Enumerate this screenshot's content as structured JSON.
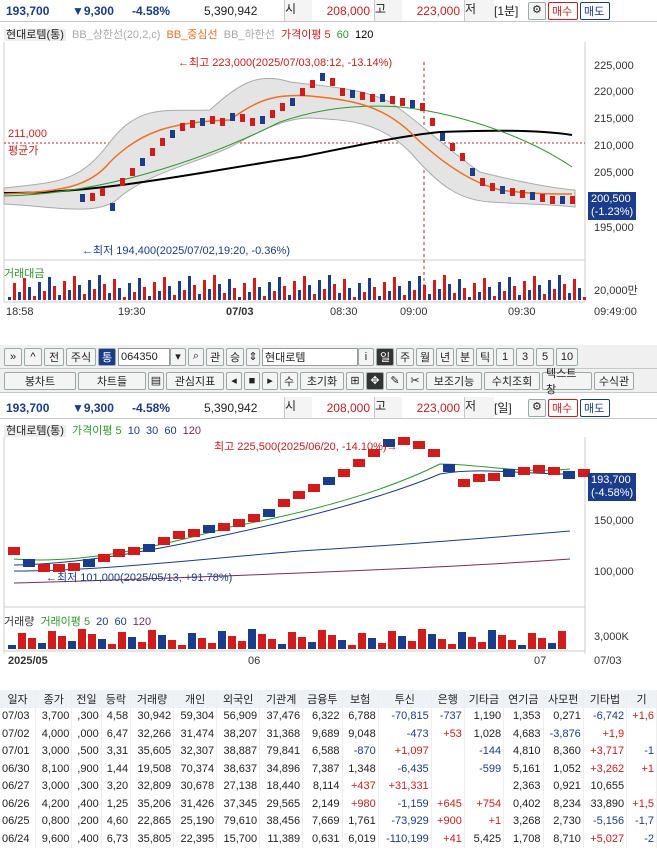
{
  "top_bar": {
    "price": "193,700",
    "change": "▼9,300",
    "rate": "-4.58%",
    "volume": "5,390,942",
    "low_label": "시",
    "open": "208,000",
    "high_label": "고",
    "high": "223,000",
    "low_word": "저",
    "interval": "[1분]",
    "buy": "매수",
    "sell": "매도"
  },
  "chart1": {
    "legend": {
      "name": "현대로템(통)",
      "bb_upper": "BB_상한선(20,2,c)",
      "bb_mid": "BB_중심선",
      "bb_lower": "BB_하한선",
      "ma_label": "가격이평 5",
      "ma60": "60",
      "ma120": "120"
    },
    "annotation_high": "←최고 223,000(2025/07/03,08:12, -13.14%)",
    "annotation_low": "←최저 194,400(2025/07/02,19:20, -0.36%)",
    "avg_label_value": "211,000",
    "avg_label_text": "평균가",
    "y_ticks": [
      "225,000",
      "220,000",
      "215,000",
      "210,000",
      "205,000",
      "195,000"
    ],
    "current_price": "200,500",
    "current_rate": "(-1.23%)",
    "volume_label": "거래대금",
    "volume_tick": "20,000만",
    "x_ticks": [
      "18:58",
      "19:30",
      "07/03",
      "08:30",
      "09:00",
      "09:30",
      "09:49:00"
    ]
  },
  "toolbar": {
    "items": [
      "전",
      "주식"
    ],
    "code": "064350",
    "name": "현대로템",
    "periods": [
      "일",
      "주",
      "월",
      "년",
      "분",
      "틱"
    ],
    "nums": [
      "1",
      "3",
      "5",
      "10"
    ],
    "row2": [
      "봉차트",
      "차트들",
      "관심지표",
      "수",
      "초기화",
      "보조기능",
      "수치조회",
      "텍스트 창",
      "수식관"
    ]
  },
  "chart2_bar": {
    "price": "193,700",
    "change": "▼9,300",
    "rate": "-4.58%",
    "volume": "5,390,942",
    "low_label": "시",
    "open": "208,000",
    "high_label": "고",
    "high": "223,000",
    "low_word": "저",
    "interval": "[일]",
    "buy": "매수",
    "sell": "매도"
  },
  "chart2": {
    "legend": {
      "name": "현대로템(통)",
      "ma_label": "가격이평 5",
      "ma10": "10",
      "ma30": "30",
      "ma60": "60",
      "ma120": "120"
    },
    "annotation_high": "최고 225,500(2025/06/20, -14.10%)→",
    "annotation_low": "←최저 101,000(2025/05/13, +91.78%)",
    "y_ticks": [
      "150,000",
      "100,000"
    ],
    "current_price": "193,700",
    "current_rate": "(-4.58%)",
    "volume_legend": "거래량",
    "volume_ma": "거래이평 5",
    "vma20": "20",
    "vma60": "60",
    "vma120": "120",
    "volume_tick": "3,000K",
    "x_ticks": [
      "2025/05",
      "06",
      "07",
      "07/03"
    ]
  },
  "table": {
    "headers": [
      "일자",
      "종가",
      "전일",
      "등락",
      "거래량",
      "개인",
      "외국인",
      "기관계",
      "금융투",
      "보험",
      "투신",
      "은행",
      "기타금",
      "연기금",
      "사모펀",
      "기타법",
      "기"
    ],
    "rows": [
      [
        "07/03",
        "3,700",
        ",300",
        "4,58",
        "30,942",
        "59,304",
        "56,909",
        "37,476",
        "6,322",
        "6,788",
        "-70,815",
        "-737",
        "1,190",
        "1,353",
        "0,271",
        "-6,742",
        "+1,6"
      ],
      [
        "07/02",
        "4,000",
        ",000",
        "6,47",
        "32,266",
        "31,474",
        "38,207",
        "31,368",
        "9,689",
        "9,048",
        "-473",
        "+53",
        "1,028",
        "4,683",
        "-3,876",
        "+1,9",
        ""
      ],
      [
        "07/01",
        "3,000",
        ",500",
        "3,31",
        "35,605",
        "32,307",
        "38,887",
        "79,841",
        "6,588",
        "-870",
        "+1,097",
        "",
        "-144",
        "4,810",
        "8,360",
        "+3,717",
        "-1"
      ],
      [
        "06/30",
        "8,100",
        ",900",
        "1,44",
        "19,508",
        "70,374",
        "38,637",
        "34,896",
        "7,387",
        "1,348",
        "-6,435",
        "",
        "-599",
        "5,161",
        "1,052",
        "+3,262",
        "+1"
      ],
      [
        "06/27",
        "3,000",
        ",300",
        "3,20",
        "32,809",
        "30,678",
        "27,138",
        "18,440",
        "8,114",
        "+437",
        "+31,331",
        "",
        "",
        "2,363",
        "0,921",
        "10,655",
        ""
      ],
      [
        "06/26",
        "4,200",
        ",400",
        "1,25",
        "35,206",
        "31,426",
        "37,345",
        "29,565",
        "2,149",
        "+980",
        "-1,159",
        "+645",
        "+754",
        "0,402",
        "8,234",
        "33,890",
        "+1,5"
      ],
      [
        "06/25",
        "0,800",
        ",200",
        "4,60",
        "22,865",
        "25,190",
        "79,610",
        "38,456",
        "7,669",
        "1,761",
        "-73,929",
        "+900",
        "+1",
        "3,268",
        "2,730",
        "-5,156",
        "-1,7"
      ],
      [
        "06/24",
        "9,600",
        ",400",
        "6,73",
        "35,805",
        "22,395",
        "15,700",
        "11,389",
        "0,631",
        "6,019",
        "-110,199",
        "+41",
        "5,425",
        "1,708",
        "8,710",
        "+5,027",
        "-2"
      ]
    ]
  }
}
